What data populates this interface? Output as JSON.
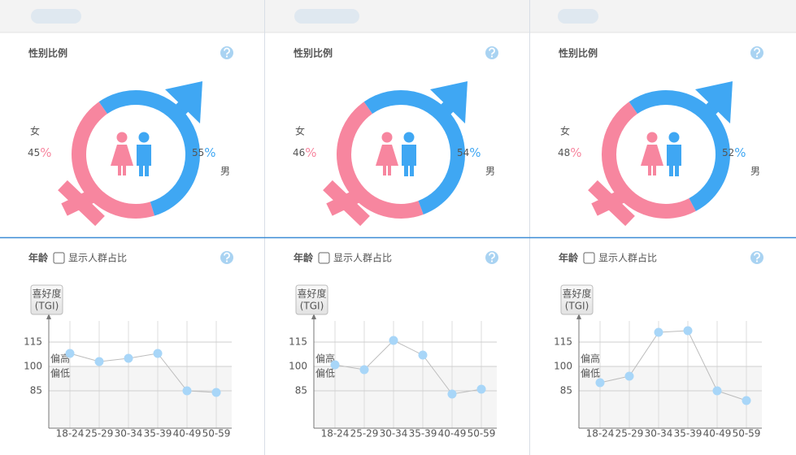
{
  "chart_data": [
    {
      "type": "donut",
      "title": "性别比例",
      "categories": [
        "女",
        "男"
      ],
      "values": [
        45,
        55
      ],
      "unit": "%",
      "colors": [
        "#f7869f",
        "#3fa7f3"
      ]
    },
    {
      "type": "line",
      "title": "年龄",
      "checkbox_label": "显示人群占比",
      "ylabel": [
        "喜好度",
        "(TGI)"
      ],
      "annotations": [
        "偏高",
        "偏低"
      ],
      "categories": [
        "18-24",
        "25-29",
        "30-34",
        "35-39",
        "40-49",
        "50-59"
      ],
      "values": [
        108,
        103,
        105,
        108,
        85,
        84
      ],
      "color": "#a8d6f8",
      "ylim": [
        62,
        128
      ],
      "yticks": [
        85,
        100,
        115
      ],
      "grid": true
    },
    {
      "type": "donut",
      "title": "性别比例",
      "categories": [
        "女",
        "男"
      ],
      "values": [
        46,
        54
      ],
      "unit": "%",
      "colors": [
        "#f7869f",
        "#3fa7f3"
      ]
    },
    {
      "type": "line",
      "title": "年龄",
      "checkbox_label": "显示人群占比",
      "ylabel": [
        "喜好度",
        "(TGI)"
      ],
      "annotations": [
        "偏高",
        "偏低"
      ],
      "categories": [
        "18-24",
        "25-29",
        "30-34",
        "35-39",
        "40-49",
        "50-59"
      ],
      "values": [
        101,
        98,
        116,
        107,
        83,
        86
      ],
      "color": "#a8d6f8",
      "ylim": [
        62,
        128
      ],
      "yticks": [
        85,
        100,
        115
      ],
      "grid": true
    },
    {
      "type": "donut",
      "title": "性别比例",
      "categories": [
        "女",
        "男"
      ],
      "values": [
        48,
        52
      ],
      "unit": "%",
      "colors": [
        "#f7869f",
        "#3fa7f3"
      ]
    },
    {
      "type": "line",
      "title": "年龄",
      "checkbox_label": "显示人群占比",
      "ylabel": [
        "喜好度",
        "(TGI)"
      ],
      "annotations": [
        "偏高",
        "偏低"
      ],
      "categories": [
        "18-24",
        "25-29",
        "30-34",
        "35-39",
        "40-49",
        "50-59"
      ],
      "values": [
        90,
        94,
        121,
        122,
        85,
        79
      ],
      "color": "#a8d6f8",
      "ylim": [
        62,
        128
      ],
      "yticks": [
        85,
        100,
        115
      ],
      "grid": true
    }
  ]
}
